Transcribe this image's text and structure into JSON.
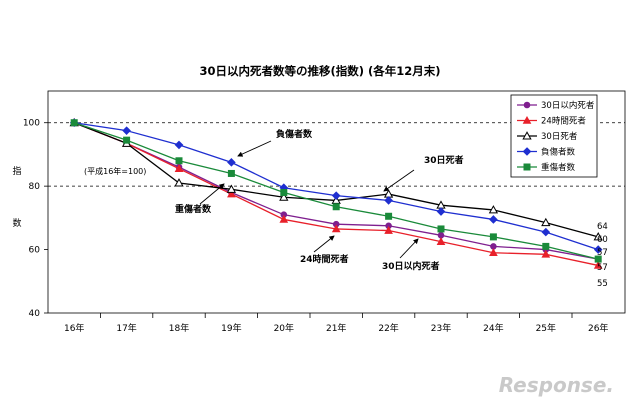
{
  "chart_data": {
    "type": "line",
    "title": "30日以内死者数等の推移(指数) (各年12月末)",
    "ylabel_chars": [
      "指",
      "数"
    ],
    "ylim": [
      40,
      110
    ],
    "yticks": [
      40,
      60,
      80,
      100
    ],
    "grid": "dashed at 80 and 100",
    "legend": "top-right",
    "base_note": "(平成16年=100)",
    "categories": [
      "16年",
      "17年",
      "18年",
      "19年",
      "20年",
      "21年",
      "22年",
      "23年",
      "24年",
      "25年",
      "26年"
    ],
    "series": [
      {
        "name": "30日以内死者",
        "color": "#7f1f8f",
        "marker": "circle",
        "values": [
          100,
          93.5,
          86,
          78,
          71,
          68,
          67.5,
          64.5,
          61,
          60,
          57
        ]
      },
      {
        "name": "24時間死者",
        "color": "#e8202a",
        "marker": "triangle",
        "values": [
          100,
          93.5,
          85.5,
          77.5,
          69.5,
          66.5,
          66,
          62.5,
          59,
          58.5,
          55
        ]
      },
      {
        "name": "30日死者",
        "color": "#000000",
        "marker": "open-triangle",
        "values": [
          100,
          93.5,
          81,
          79,
          76.5,
          75.5,
          77.5,
          74,
          72.5,
          68.5,
          64
        ]
      },
      {
        "name": "負傷者数",
        "color": "#1f2fd0",
        "marker": "diamond",
        "values": [
          100,
          97.5,
          93,
          87.5,
          79.5,
          77,
          75.5,
          72,
          69.5,
          65.5,
          60
        ]
      },
      {
        "name": "重傷者数",
        "color": "#1a8a3a",
        "marker": "square",
        "values": [
          100,
          94.5,
          88,
          84,
          78,
          73.5,
          70.5,
          66.5,
          64,
          61,
          57
        ]
      }
    ],
    "end_labels": [
      "64",
      "60",
      "57",
      "57",
      "55"
    ],
    "annotations": [
      "負傷者数",
      "30日死者",
      "重傷者数",
      "24時間死者",
      "30日以内死者"
    ]
  },
  "watermark": "Response."
}
